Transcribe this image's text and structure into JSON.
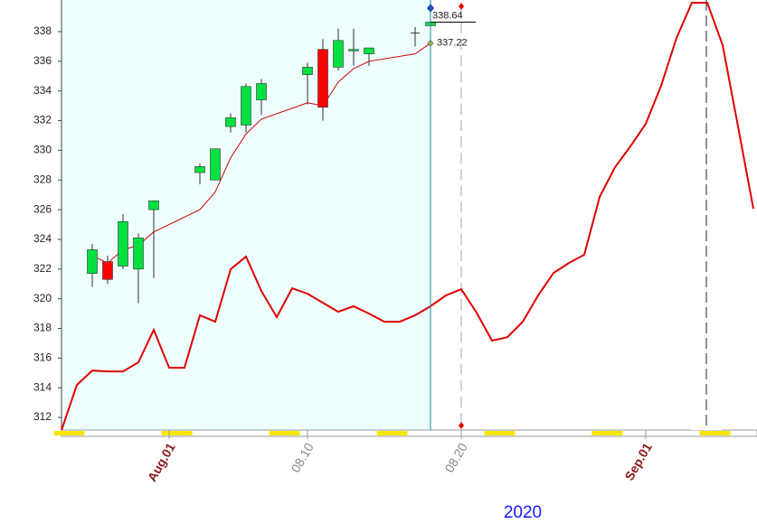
{
  "chart_data": {
    "type": "candlestick",
    "ylim": [
      311.15,
      340.13
    ],
    "yticks": [
      312,
      314,
      316,
      318,
      320,
      322,
      324,
      326,
      328,
      330,
      332,
      334,
      336,
      338
    ],
    "xlim": [
      "2020-07-25",
      "2020-09-08"
    ],
    "xticks": [
      {
        "value": "2020-08-01",
        "label": "Aug.01"
      },
      {
        "value": "2020-08-10",
        "label": "08.10"
      },
      {
        "value": "2020-08-20",
        "label": "08.20"
      },
      {
        "value": "2020-09-01",
        "label": "Sep.01"
      }
    ],
    "xtick_colors": [
      "#8b1a1a",
      "#888888",
      "#888888",
      "#8b1a1a"
    ],
    "year_label": "2020",
    "candles": {
      "x": [
        "2020-07-27",
        "2020-07-28",
        "2020-07-29",
        "2020-07-30",
        "2020-07-31",
        "2020-08-03",
        "2020-08-04",
        "2020-08-05",
        "2020-08-06",
        "2020-08-07",
        "2020-08-10",
        "2020-08-11",
        "2020-08-12",
        "2020-08-13",
        "2020-08-14",
        "2020-08-17",
        "2020-08-18"
      ],
      "open": [
        321.7,
        322.5,
        322.2,
        322.0,
        326.0,
        328.5,
        328.0,
        331.6,
        331.7,
        333.4,
        335.1,
        336.8,
        335.6,
        336.7,
        336.5,
        337.9,
        338.4
      ],
      "high": [
        323.7,
        322.9,
        325.7,
        324.4,
        326.6,
        329.1,
        330.1,
        332.5,
        334.5,
        334.8,
        335.9,
        337.5,
        338.2,
        338.2,
        336.9,
        338.3,
        338.8
      ],
      "low": [
        320.8,
        321.0,
        322.0,
        319.7,
        321.4,
        327.7,
        328.0,
        331.2,
        331.2,
        332.4,
        333.1,
        332.0,
        335.4,
        335.7,
        335.7,
        337.0,
        338.3
      ],
      "close": [
        323.3,
        321.3,
        325.2,
        324.1,
        326.6,
        328.9,
        330.1,
        332.2,
        334.3,
        334.5,
        335.6,
        332.9,
        337.4,
        336.8,
        336.9,
        337.9,
        338.64
      ],
      "up_color": "#00e040",
      "down_color": "#ff0000"
    },
    "lines": [
      {
        "x": [
          "2020-07-27",
          "2020-07-28",
          "2020-07-29",
          "2020-07-30",
          "2020-07-31",
          "2020-08-03",
          "2020-08-04",
          "2020-08-05",
          "2020-08-06",
          "2020-08-07",
          "2020-08-10",
          "2020-08-11",
          "2020-08-12",
          "2020-08-13",
          "2020-08-14",
          "2020-08-17",
          "2020-08-18"
        ],
        "values": [
          322.9,
          322.4,
          323.3,
          323.6,
          324.5,
          326.0,
          327.2,
          329.5,
          331.1,
          332.1,
          333.2,
          333.0,
          334.6,
          335.5,
          336.0,
          336.5,
          337.22
        ],
        "color": "#cc0000",
        "width": 1
      },
      {
        "x": [
          "2020-07-25",
          "2020-07-26",
          "2020-07-27",
          "2020-07-28",
          "2020-07-29",
          "2020-07-30",
          "2020-07-31",
          "2020-08-01",
          "2020-08-02",
          "2020-08-03",
          "2020-08-04",
          "2020-08-05",
          "2020-08-06",
          "2020-08-07",
          "2020-08-08",
          "2020-08-09",
          "2020-08-10",
          "2020-08-11",
          "2020-08-12",
          "2020-08-13",
          "2020-08-14",
          "2020-08-15",
          "2020-08-16",
          "2020-08-17",
          "2020-08-18",
          "2020-08-19",
          "2020-08-20",
          "2020-08-21",
          "2020-08-22",
          "2020-08-23",
          "2020-08-24",
          "2020-08-25",
          "2020-08-26",
          "2020-08-27",
          "2020-08-28",
          "2020-08-29",
          "2020-08-30",
          "2020-08-31",
          "2020-09-01",
          "2020-09-02",
          "2020-09-03",
          "2020-09-04",
          "2020-09-05",
          "2020-09-06",
          "2020-09-07",
          "2020-09-08"
        ],
        "values": [
          311.14,
          314.19,
          315.16,
          315.1,
          315.1,
          315.71,
          317.9,
          315.35,
          315.35,
          318.88,
          318.45,
          321.98,
          322.84,
          320.52,
          318.76,
          320.7,
          320.34,
          319.73,
          319.12,
          319.49,
          319.0,
          318.45,
          318.45,
          318.88,
          319.49,
          320.22,
          320.64,
          319.06,
          317.17,
          317.41,
          318.45,
          320.22,
          321.74,
          322.41,
          322.96,
          326.86,
          328.86,
          330.27,
          331.79,
          334.35,
          337.57,
          339.95,
          339.95,
          337.09,
          331.61,
          326.06
        ],
        "color": "#e00000",
        "width": 2
      }
    ]
  }
}
